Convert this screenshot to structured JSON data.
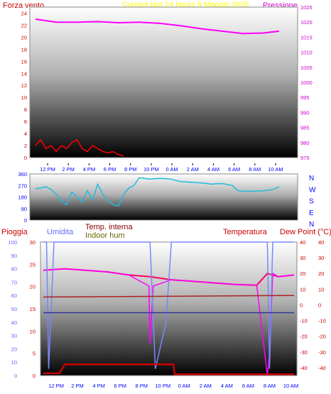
{
  "header": {
    "left_title": "Forza vento",
    "center_title": "Current last 24 hours 9 Maggio 2025",
    "right_title": "Pressione"
  },
  "bottom_labels": {
    "pioggia": "Pioggia",
    "umidita": "Umidita",
    "temp_interna": "Temp. interna",
    "indoor_hum": "Indoor hum",
    "temperatura": "Temperatura",
    "dew_point": "Dew Point (°C)"
  },
  "colors": {
    "wind": "#ff0000",
    "pressure": "#ff00ff",
    "direction": "#22bbdd",
    "humidity": "#7788ff",
    "temperature": "#ff0066",
    "dew_point": "#ff00ff",
    "indoor_temp": "#aa2222",
    "indoor_hum": "#333399",
    "rain": "#cc0000"
  },
  "x_ticks": [
    "12 PM",
    "2 PM",
    "4 PM",
    "6 PM",
    "8 PM",
    "10 PM",
    "0 AM",
    "2 AM",
    "4 AM",
    "6 AM",
    "8 AM",
    "10 AM"
  ],
  "chart_data": [
    {
      "type": "line",
      "name": "wind-pressure",
      "yleft_ticks": [
        0,
        2,
        4,
        6,
        8,
        10,
        12,
        14,
        16,
        18,
        20,
        22,
        24
      ],
      "yleft_range": [
        0,
        25
      ],
      "yright_ticks": [
        975,
        980,
        985,
        990,
        995,
        1000,
        1005,
        1010,
        1015,
        1020,
        1025
      ],
      "yright_range": [
        975,
        1025
      ],
      "series": [
        {
          "name": "Pressione",
          "axis": "right",
          "x": [
            0,
            2,
            4,
            6,
            8,
            10,
            12,
            14,
            16,
            18,
            20,
            22,
            23.5
          ],
          "values": [
            1021,
            1020,
            1020,
            1020.2,
            1019.8,
            1020,
            1019.6,
            1018.8,
            1017.8,
            1017,
            1016.2,
            1016.4,
            1017
          ]
        },
        {
          "name": "Forza vento",
          "axis": "left",
          "x": [
            0,
            0.5,
            1,
            1.5,
            2,
            2.5,
            3,
            3.5,
            4,
            4.5,
            5,
            5.5,
            6,
            6.5,
            7,
            7.5,
            8,
            8.5
          ],
          "values": [
            2,
            3,
            1.5,
            2,
            1,
            2,
            1.5,
            2.5,
            3,
            1.5,
            1,
            2,
            1.5,
            1,
            0.8,
            1,
            0.5,
            0.3
          ]
        }
      ]
    },
    {
      "type": "line",
      "name": "direction",
      "y_ticks": [
        0,
        90,
        180,
        270,
        360
      ],
      "y_range": [
        0,
        360
      ],
      "dir_labels": [
        "N",
        "W",
        "S",
        "E",
        "N"
      ],
      "series": [
        {
          "x": [
            0,
            0.5,
            1,
            1.5,
            2,
            2.5,
            3,
            3.5,
            4,
            4.5,
            5,
            5.5,
            6,
            6.5,
            7,
            7.5,
            8,
            8.5,
            9,
            9.5,
            10,
            11,
            12,
            13,
            14,
            15,
            16,
            17,
            18,
            19,
            19.5,
            20,
            21,
            22,
            23,
            23.5
          ],
          "values": [
            245,
            250,
            260,
            240,
            200,
            150,
            120,
            220,
            180,
            140,
            230,
            160,
            280,
            200,
            150,
            120,
            110,
            200,
            250,
            270,
            330,
            320,
            325,
            320,
            300,
            295,
            290,
            280,
            285,
            270,
            230,
            225,
            225,
            228,
            240,
            260
          ]
        }
      ]
    },
    {
      "type": "line",
      "name": "temp-hum-rain",
      "y_umidita_ticks": [
        0,
        10,
        20,
        30,
        40,
        50,
        60,
        70,
        80,
        90,
        100
      ],
      "y_pioggia_ticks": [
        0,
        5,
        10,
        15,
        20,
        25,
        30
      ],
      "y_temp_ticks": [
        -40,
        -30,
        -20,
        -10,
        0,
        10,
        20,
        30,
        40
      ],
      "y_temp_range": [
        -45,
        40
      ],
      "series": [
        {
          "name": "Temperatura",
          "x": [
            0,
            2,
            4,
            6,
            8,
            10,
            12,
            14,
            16,
            18,
            20,
            21,
            22,
            23.5
          ],
          "values": [
            22,
            23,
            22,
            21,
            19,
            18,
            16,
            15,
            14,
            13,
            12.5,
            20,
            18,
            19
          ]
        },
        {
          "name": "Dew Point",
          "x": [
            0,
            2,
            4,
            6,
            8,
            9.9,
            10,
            10.3,
            12,
            14,
            16,
            18,
            20,
            21,
            21.2,
            21.5,
            22,
            23.5
          ],
          "values": [
            22,
            23,
            22,
            21,
            19,
            12,
            -25,
            12,
            16,
            15,
            14,
            13,
            12.5,
            -45,
            -30,
            20,
            18,
            19
          ]
        },
        {
          "name": "Umidita",
          "x": [
            0,
            0.3,
            0.5,
            1,
            10,
            10.5,
            11.5,
            12,
            12.5,
            21,
            21.2,
            21.5,
            23.5
          ],
          "values": [
            100,
            100,
            5,
            100,
            100,
            5,
            40,
            100,
            100,
            100,
            5,
            100,
            100
          ]
        },
        {
          "name": "Temp. interna",
          "x": [
            0,
            23.5
          ],
          "values": [
            5,
            6
          ]
        },
        {
          "name": "Indoor hum",
          "x": [
            0,
            23.5
          ],
          "values": [
            -5,
            -5
          ]
        },
        {
          "name": "Pioggia",
          "x": [
            0,
            1.5,
            2,
            12.2,
            12.3,
            23.5
          ],
          "values": [
            0.5,
            0.5,
            2.5,
            2.5,
            0.3,
            0.3
          ]
        }
      ]
    }
  ]
}
